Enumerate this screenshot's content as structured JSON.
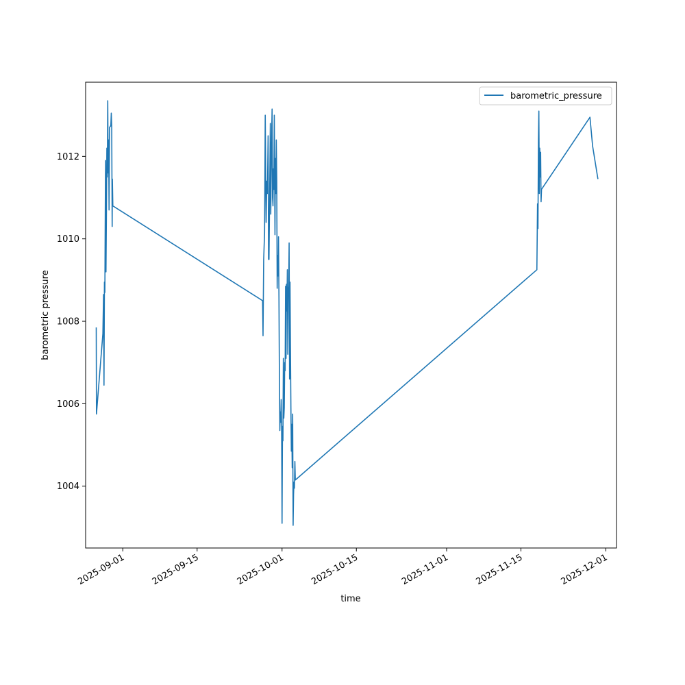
{
  "chart_data": {
    "type": "line",
    "title": "",
    "xlabel": "time",
    "ylabel": "barometric pressure",
    "x_axis_type": "date",
    "xlim": [
      "2025-08-25",
      "2025-12-03"
    ],
    "ylim": [
      1002.5,
      1013.8
    ],
    "grid": false,
    "legend_placement": "upper right",
    "x_ticks": [
      "2025-09-01",
      "2025-09-15",
      "2025-10-01",
      "2025-10-15",
      "2025-11-01",
      "2025-11-15",
      "2025-12-01"
    ],
    "y_ticks": [
      1004,
      1006,
      1008,
      1010,
      1012
    ],
    "series": [
      {
        "name": "barometric_pressure",
        "color": "#1f77b4",
        "points": [
          [
            "2025-08-27T00:00",
            1007.85
          ],
          [
            "2025-08-27T01:00",
            1005.75
          ],
          [
            "2025-08-28T06:00",
            1007.7
          ],
          [
            "2025-08-28T09:00",
            1008.65
          ],
          [
            "2025-08-28T11:00",
            1006.45
          ],
          [
            "2025-08-28T13:00",
            1008.95
          ],
          [
            "2025-08-28T15:00",
            1008.7
          ],
          [
            "2025-08-28T18:00",
            1011.9
          ],
          [
            "2025-08-28T20:00",
            1009.2
          ],
          [
            "2025-08-28T22:00",
            1010.6
          ],
          [
            "2025-08-29T00:00",
            1012.2
          ],
          [
            "2025-08-29T02:00",
            1011.5
          ],
          [
            "2025-08-29T04:00",
            1013.35
          ],
          [
            "2025-08-29T06:00",
            1011.6
          ],
          [
            "2025-08-29T08:00",
            1012.4
          ],
          [
            "2025-08-29T10:00",
            1010.7
          ],
          [
            "2025-08-29T12:00",
            1012.7
          ],
          [
            "2025-08-29T18:00",
            1012.75
          ],
          [
            "2025-08-29T20:00",
            1013.05
          ],
          [
            "2025-08-29T22:00",
            1012.7
          ],
          [
            "2025-08-30T00:00",
            1010.3
          ],
          [
            "2025-08-30T01:00",
            1011.45
          ],
          [
            "2025-08-30T03:00",
            1010.8
          ],
          [
            "2025-09-27T08:00",
            1008.5
          ],
          [
            "2025-09-27T10:00",
            1007.65
          ],
          [
            "2025-09-27T13:00",
            1009.5
          ],
          [
            "2025-09-27T17:00",
            1010.15
          ],
          [
            "2025-09-27T20:00",
            1013.0
          ],
          [
            "2025-09-28T00:00",
            1010.4
          ],
          [
            "2025-09-28T03:00",
            1011.4
          ],
          [
            "2025-09-28T06:00",
            1011.1
          ],
          [
            "2025-09-28T09:00",
            1012.5
          ],
          [
            "2025-09-28T11:00",
            1009.5
          ],
          [
            "2025-09-28T13:00",
            1009.5
          ],
          [
            "2025-09-28T16:00",
            1011.1
          ],
          [
            "2025-09-28T19:00",
            1012.8
          ],
          [
            "2025-09-28T21:00",
            1010.6
          ],
          [
            "2025-09-29T00:00",
            1012.2
          ],
          [
            "2025-09-29T03:00",
            1013.15
          ],
          [
            "2025-09-29T05:00",
            1011.0
          ],
          [
            "2025-09-29T07:00",
            1010.8
          ],
          [
            "2025-09-29T09:00",
            1011.7
          ],
          [
            "2025-09-29T11:00",
            1011.2
          ],
          [
            "2025-09-29T13:00",
            1013.0
          ],
          [
            "2025-09-29T16:00",
            1010.1
          ],
          [
            "2025-09-29T18:00",
            1011.95
          ],
          [
            "2025-09-29T20:00",
            1011.1
          ],
          [
            "2025-09-29T22:00",
            1012.4
          ],
          [
            "2025-09-30T00:00",
            1011.4
          ],
          [
            "2025-09-30T02:00",
            1008.8
          ],
          [
            "2025-09-30T04:00",
            1009.6
          ],
          [
            "2025-09-30T06:00",
            1009.1
          ],
          [
            "2025-09-30T08:00",
            1010.05
          ],
          [
            "2025-09-30T10:00",
            1008.6
          ],
          [
            "2025-09-30T12:00",
            1006.7
          ],
          [
            "2025-09-30T14:00",
            1005.35
          ],
          [
            "2025-09-30T16:00",
            1005.8
          ],
          [
            "2025-09-30T18:00",
            1005.55
          ],
          [
            "2025-09-30T20:00",
            1006.1
          ],
          [
            "2025-09-30T22:00",
            1005.5
          ],
          [
            "2025-10-01T00:00",
            1003.1
          ],
          [
            "2025-10-01T02:00",
            1005.45
          ],
          [
            "2025-10-01T04:00",
            1005.1
          ],
          [
            "2025-10-01T06:00",
            1007.1
          ],
          [
            "2025-10-01T08:00",
            1005.65
          ],
          [
            "2025-10-01T10:00",
            1005.9
          ],
          [
            "2025-10-01T12:00",
            1007.0
          ],
          [
            "2025-10-01T14:00",
            1006.8
          ],
          [
            "2025-10-01T16:00",
            1008.85
          ],
          [
            "2025-10-01T18:00",
            1007.1
          ],
          [
            "2025-10-01T20:00",
            1008.9
          ],
          [
            "2025-10-01T22:00",
            1008.25
          ],
          [
            "2025-10-02T00:00",
            1009.25
          ],
          [
            "2025-10-02T02:00",
            1007.2
          ],
          [
            "2025-10-02T04:00",
            1008.75
          ],
          [
            "2025-10-02T06:00",
            1008.85
          ],
          [
            "2025-10-02T08:00",
            1009.9
          ],
          [
            "2025-10-02T10:00",
            1006.6
          ],
          [
            "2025-10-02T12:00",
            1008.95
          ],
          [
            "2025-10-02T14:00",
            1007.35
          ],
          [
            "2025-10-02T16:00",
            1005.9
          ],
          [
            "2025-10-02T18:00",
            1004.85
          ],
          [
            "2025-10-02T20:00",
            1005.5
          ],
          [
            "2025-10-02T22:00",
            1004.45
          ],
          [
            "2025-10-03T00:00",
            1005.75
          ],
          [
            "2025-10-03T02:00",
            1003.05
          ],
          [
            "2025-10-03T04:00",
            1003.8
          ],
          [
            "2025-10-03T06:00",
            1004.1
          ],
          [
            "2025-10-03T08:00",
            1003.95
          ],
          [
            "2025-10-03T10:00",
            1004.6
          ],
          [
            "2025-10-03T12:00",
            1004.15
          ],
          [
            "2025-11-18T00:00",
            1009.25
          ],
          [
            "2025-11-18T03:00",
            1010.85
          ],
          [
            "2025-11-18T05:00",
            1010.25
          ],
          [
            "2025-11-18T07:00",
            1012.35
          ],
          [
            "2025-11-18T09:00",
            1013.1
          ],
          [
            "2025-11-18T11:00",
            1011.1
          ],
          [
            "2025-11-18T13:00",
            1012.2
          ],
          [
            "2025-11-18T15:00",
            1011.5
          ],
          [
            "2025-11-18T17:00",
            1012.1
          ],
          [
            "2025-11-18T19:00",
            1010.9
          ],
          [
            "2025-11-18T21:00",
            1011.2
          ],
          [
            "2025-11-28T00:00",
            1012.95
          ],
          [
            "2025-11-28T12:00",
            1012.25
          ],
          [
            "2025-11-29T12:00",
            1011.45
          ]
        ]
      }
    ]
  }
}
